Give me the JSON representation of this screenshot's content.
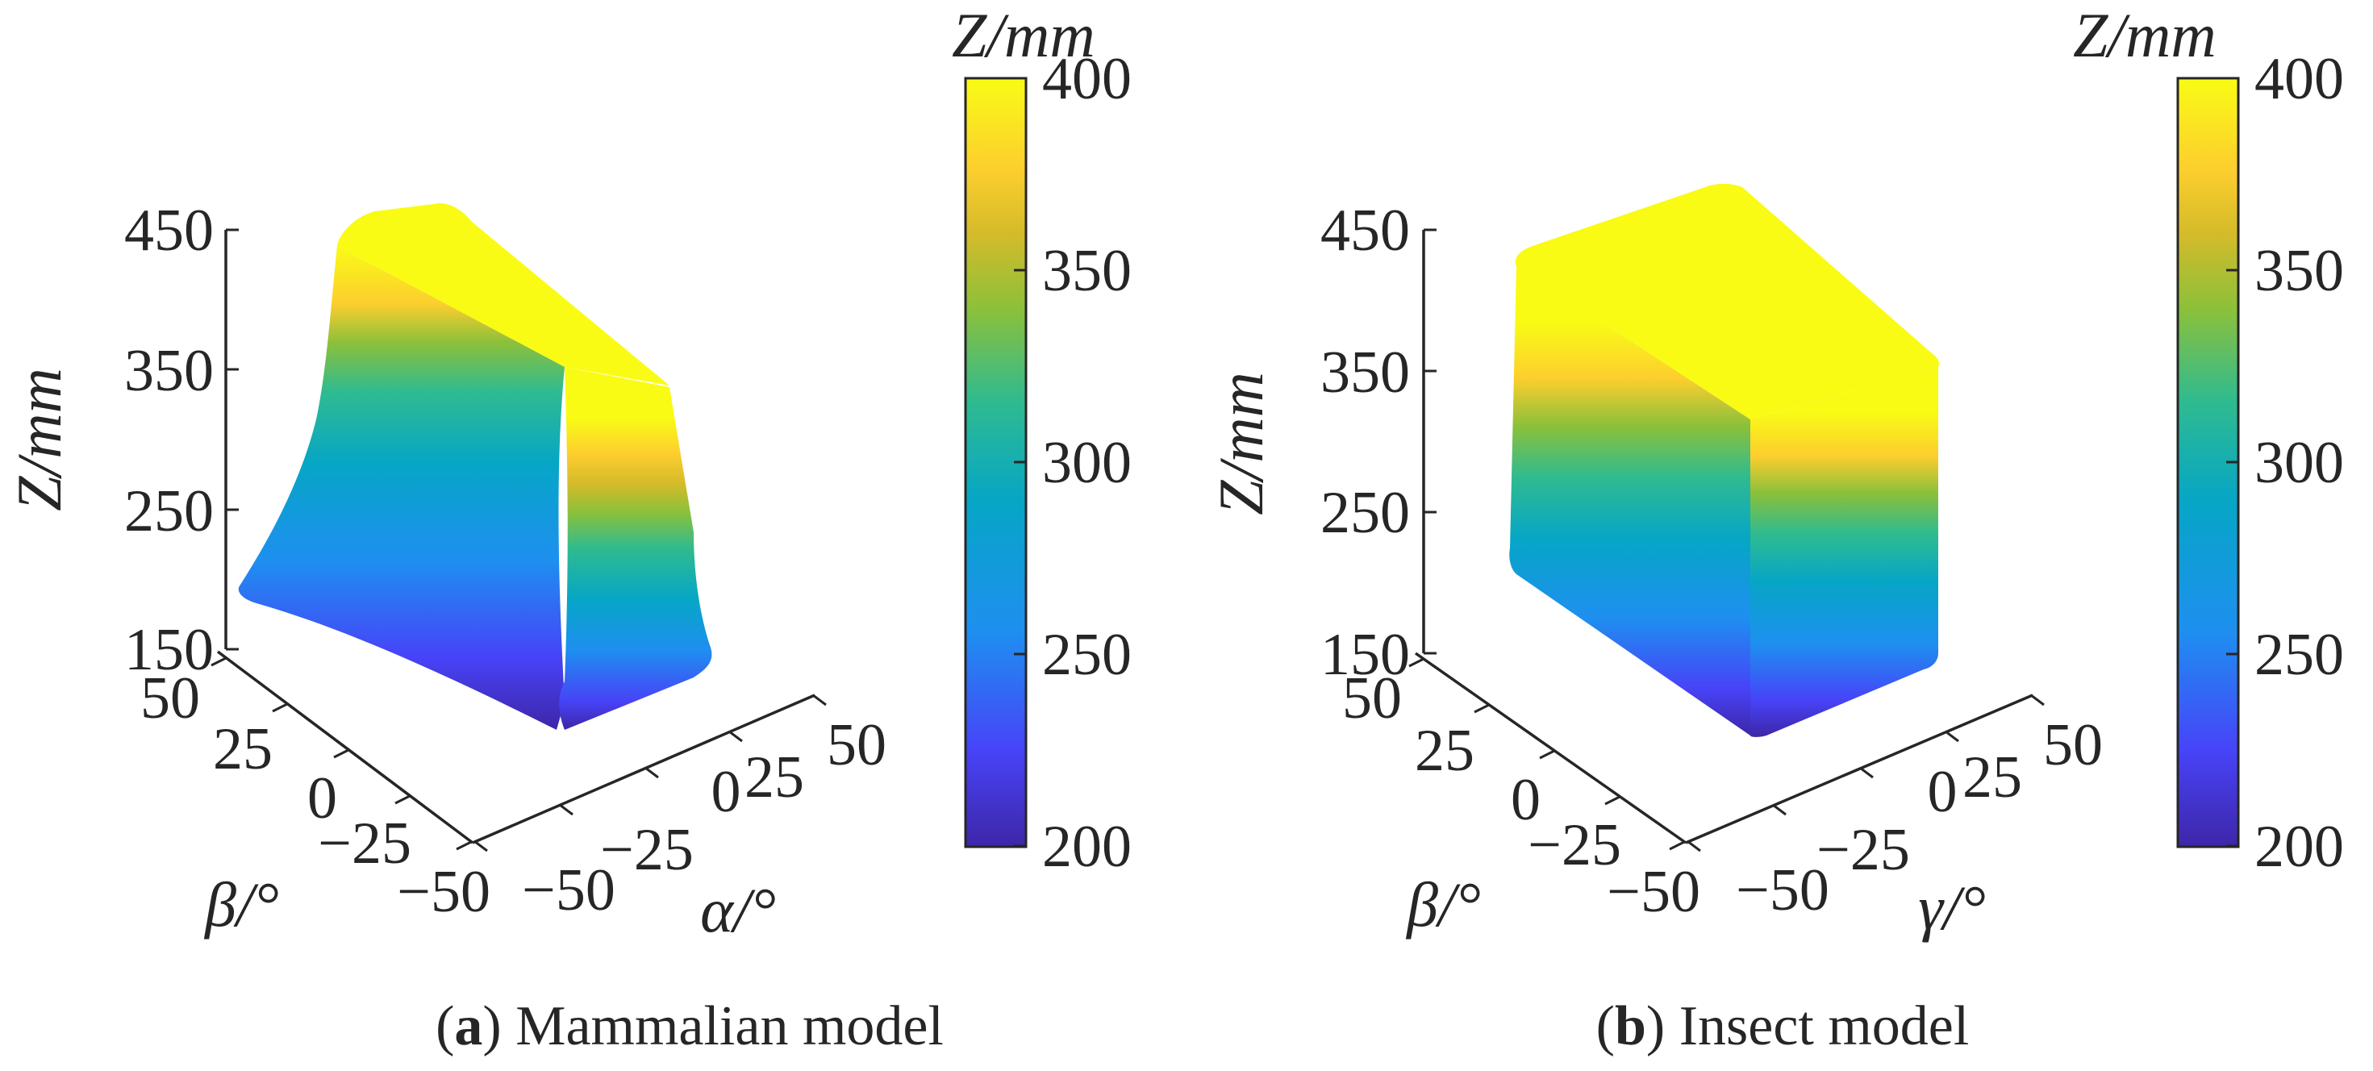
{
  "colors": {
    "scale": [
      "#3e26a8",
      "#4743f8",
      "#1e8ff0",
      "#06a6c6",
      "#2fbb8f",
      "#8cc03a",
      "#d6bb2a",
      "#fcce2e",
      "#f9fb15"
    ]
  },
  "chart_data": [
    {
      "type": "3d-surface",
      "panel": "a",
      "caption_letter": "a",
      "caption_text": ") Mammalian model",
      "caption_open": "(",
      "zlabel": "Z/mm",
      "xlabel": "α/°",
      "ylabel": "β/°",
      "zticks": [
        "450",
        "350",
        "250",
        "150"
      ],
      "xticks": [
        "−50",
        "−25",
        "0",
        "25",
        "50"
      ],
      "yticks": [
        "50",
        "25",
        "0",
        "−25",
        "−50"
      ],
      "zlim": [
        150,
        450
      ],
      "xlim": [
        -50,
        50
      ],
      "ylim": [
        -50,
        50
      ],
      "colorbar": {
        "label": "Z/mm",
        "ticks": [
          "400",
          "350",
          "300",
          "250",
          "200"
        ],
        "range": [
          200,
          400
        ]
      }
    },
    {
      "type": "3d-surface",
      "panel": "b",
      "caption_letter": "b",
      "caption_text": ") Insect model",
      "caption_open": "(",
      "zlabel": "Z/mm",
      "xlabel": "γ/°",
      "ylabel": "β/°",
      "zticks": [
        "450",
        "350",
        "250",
        "150"
      ],
      "xticks": [
        "−50",
        "−25",
        "0",
        "25",
        "50"
      ],
      "yticks": [
        "50",
        "25",
        "0",
        "−25",
        "−50"
      ],
      "zlim": [
        150,
        450
      ],
      "xlim": [
        -50,
        50
      ],
      "ylim": [
        -50,
        50
      ],
      "colorbar": {
        "label": "Z/mm",
        "ticks": [
          "400",
          "350",
          "300",
          "250",
          "200"
        ],
        "range": [
          200,
          400
        ]
      }
    }
  ]
}
